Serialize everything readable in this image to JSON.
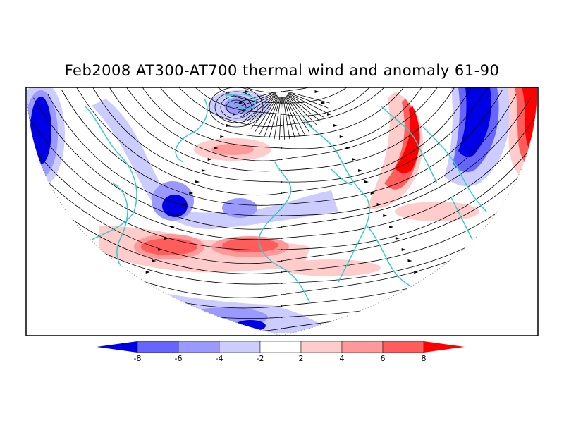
{
  "title": "Feb2008 AT300-AT700 thermal wind and anomaly 61-90",
  "colorbar": {
    "labels": [
      "-8",
      "-6",
      "-4",
      "-2",
      "2",
      "4",
      "6",
      "8"
    ],
    "colors": [
      "#0000e6",
      "#6666ff",
      "#9999ff",
      "#ccccff",
      "#ffffff",
      "#ffcccc",
      "#ff9999",
      "#ff5c5c",
      "#ff0000"
    ]
  },
  "map": {
    "projection": "polar stereographic (northern hemisphere, cut by frame)",
    "fields": [
      "thermal wind streamlines",
      "temperature anomaly (shaded)",
      "coastlines"
    ],
    "coastline_color": "#33cccc"
  }
}
